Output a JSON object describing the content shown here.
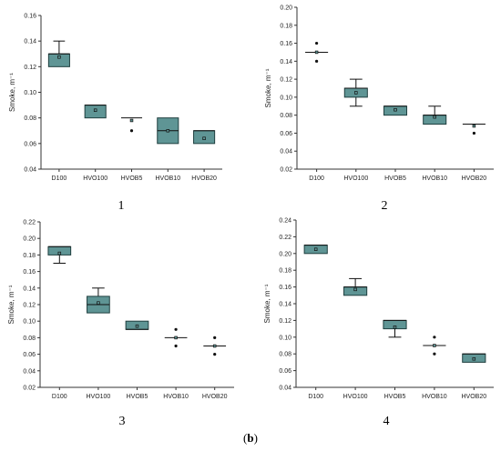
{
  "figure": {
    "caption_open": "(",
    "caption_letter": "b",
    "caption_close": ")"
  },
  "colors": {
    "box_fill": "#5f9595",
    "box_stroke": "#1f3f3f",
    "axis": "#333333",
    "marker": "#111111"
  },
  "chart_data": [
    {
      "type": "box",
      "panel_number": "1",
      "ylabel": "Smoke, m⁻¹",
      "ylim": [
        0.04,
        0.16
      ],
      "yticks": [
        "0.04",
        "0.06",
        "0.08",
        "0.10",
        "0.12",
        "0.14",
        "0.16"
      ],
      "categories": [
        "D100",
        "HVO100",
        "HVOB5",
        "HVOB10",
        "HVOB20"
      ],
      "boxes": [
        {
          "q1": 0.12,
          "q3": 0.13,
          "median": 0.13,
          "mean": 0.1275,
          "whisker_low": 0.12,
          "whisker_high": 0.14,
          "outliers": []
        },
        {
          "q1": 0.08,
          "q3": 0.09,
          "median": 0.09,
          "mean": 0.086,
          "whisker_low": 0.08,
          "whisker_high": 0.09,
          "outliers": []
        },
        {
          "q1": 0.08,
          "q3": 0.08,
          "median": 0.08,
          "mean": 0.078,
          "whisker_low": 0.08,
          "whisker_high": 0.08,
          "outliers": [
            0.07
          ]
        },
        {
          "q1": 0.06,
          "q3": 0.08,
          "median": 0.07,
          "mean": 0.07,
          "whisker_low": 0.06,
          "whisker_high": 0.08,
          "outliers": []
        },
        {
          "q1": 0.06,
          "q3": 0.07,
          "median": 0.07,
          "mean": 0.064,
          "whisker_low": 0.06,
          "whisker_high": 0.07,
          "outliers": []
        }
      ]
    },
    {
      "type": "box",
      "panel_number": "2",
      "ylabel": "Smoke, m⁻¹",
      "ylim": [
        0.02,
        0.2
      ],
      "yticks": [
        "0.02",
        "0.04",
        "0.06",
        "0.08",
        "0.10",
        "0.12",
        "0.14",
        "0.16",
        "0.18",
        "0.20"
      ],
      "categories": [
        "D100",
        "HVO100",
        "HVOB5",
        "HVOB10",
        "HVOB20"
      ],
      "boxes": [
        {
          "q1": 0.15,
          "q3": 0.15,
          "median": 0.15,
          "mean": 0.15,
          "whisker_low": 0.15,
          "whisker_high": 0.15,
          "outliers": [
            0.16,
            0.14
          ]
        },
        {
          "q1": 0.1,
          "q3": 0.11,
          "median": 0.11,
          "mean": 0.105,
          "whisker_low": 0.09,
          "whisker_high": 0.12,
          "outliers": []
        },
        {
          "q1": 0.08,
          "q3": 0.09,
          "median": 0.09,
          "mean": 0.086,
          "whisker_low": 0.08,
          "whisker_high": 0.09,
          "outliers": []
        },
        {
          "q1": 0.07,
          "q3": 0.08,
          "median": 0.08,
          "mean": 0.078,
          "whisker_low": 0.07,
          "whisker_high": 0.09,
          "outliers": []
        },
        {
          "q1": 0.07,
          "q3": 0.07,
          "median": 0.07,
          "mean": 0.068,
          "whisker_low": 0.07,
          "whisker_high": 0.07,
          "outliers": [
            0.06
          ]
        }
      ]
    },
    {
      "type": "box",
      "panel_number": "3",
      "ylabel": "Smoke, m⁻¹",
      "ylim": [
        0.02,
        0.22
      ],
      "yticks": [
        "0.02",
        "0.04",
        "0.06",
        "0.08",
        "0.10",
        "0.12",
        "0.14",
        "0.16",
        "0.18",
        "0.20",
        "0.22"
      ],
      "categories": [
        "D100",
        "HVO100",
        "HVOB5",
        "HVOB10",
        "HVOB20"
      ],
      "boxes": [
        {
          "q1": 0.18,
          "q3": 0.19,
          "median": 0.19,
          "mean": 0.182,
          "whisker_low": 0.17,
          "whisker_high": 0.19,
          "outliers": []
        },
        {
          "q1": 0.11,
          "q3": 0.13,
          "median": 0.12,
          "mean": 0.122,
          "whisker_low": 0.11,
          "whisker_high": 0.14,
          "outliers": []
        },
        {
          "q1": 0.09,
          "q3": 0.1,
          "median": 0.09,
          "mean": 0.094,
          "whisker_low": 0.09,
          "whisker_high": 0.1,
          "outliers": []
        },
        {
          "q1": 0.08,
          "q3": 0.08,
          "median": 0.08,
          "mean": 0.08,
          "whisker_low": 0.08,
          "whisker_high": 0.08,
          "outliers": [
            0.09,
            0.07
          ]
        },
        {
          "q1": 0.07,
          "q3": 0.07,
          "median": 0.07,
          "mean": 0.07,
          "whisker_low": 0.07,
          "whisker_high": 0.07,
          "outliers": [
            0.08,
            0.06
          ]
        }
      ]
    },
    {
      "type": "box",
      "panel_number": "4",
      "ylabel": "Smoke, m⁻¹",
      "ylim": [
        0.04,
        0.24
      ],
      "yticks": [
        "0.04",
        "0.06",
        "0.08",
        "0.10",
        "0.12",
        "0.14",
        "0.16",
        "0.18",
        "0.20",
        "0.22",
        "0.24"
      ],
      "categories": [
        "D100",
        "HVO100",
        "HVOB5",
        "HVOB10",
        "HVOB20"
      ],
      "boxes": [
        {
          "q1": 0.2,
          "q3": 0.21,
          "median": 0.21,
          "mean": 0.205,
          "whisker_low": 0.2,
          "whisker_high": 0.21,
          "outliers": []
        },
        {
          "q1": 0.15,
          "q3": 0.16,
          "median": 0.16,
          "mean": 0.157,
          "whisker_low": 0.15,
          "whisker_high": 0.17,
          "outliers": []
        },
        {
          "q1": 0.11,
          "q3": 0.12,
          "median": 0.12,
          "mean": 0.112,
          "whisker_low": 0.1,
          "whisker_high": 0.12,
          "outliers": []
        },
        {
          "q1": 0.09,
          "q3": 0.09,
          "median": 0.09,
          "mean": 0.09,
          "whisker_low": 0.09,
          "whisker_high": 0.09,
          "outliers": [
            0.1,
            0.08
          ]
        },
        {
          "q1": 0.07,
          "q3": 0.08,
          "median": 0.08,
          "mean": 0.074,
          "whisker_low": 0.07,
          "whisker_high": 0.08,
          "outliers": []
        }
      ]
    }
  ]
}
